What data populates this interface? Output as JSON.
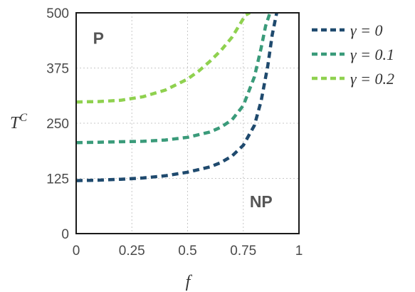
{
  "chart_data": {
    "type": "line",
    "xlabel": "f",
    "ylabel": "T",
    "ylabel_superscript": "C",
    "xlim": [
      0,
      1
    ],
    "ylim": [
      0,
      500
    ],
    "xticks": [
      0,
      0.25,
      0.5,
      0.75,
      1
    ],
    "xtick_labels": [
      "0",
      "0.25",
      "0.5",
      "0.75",
      "1"
    ],
    "yticks": [
      0,
      125,
      250,
      375,
      500
    ],
    "ytick_labels": [
      "0",
      "125",
      "250",
      "375",
      "500"
    ],
    "grid": true,
    "legend_position": "outside-right-top",
    "annotations": [
      {
        "text": "P",
        "x": 0.1,
        "y": 430
      },
      {
        "text": "NP",
        "x": 0.83,
        "y": 60
      }
    ],
    "series": [
      {
        "name": "γ = 0",
        "color": "#1f4a6e",
        "x": [
          0,
          0.1,
          0.2,
          0.3,
          0.4,
          0.5,
          0.6,
          0.65,
          0.7,
          0.75,
          0.8,
          0.83,
          0.86,
          0.88,
          0.9
        ],
        "y": [
          120,
          121,
          123,
          126,
          131,
          139,
          151,
          161,
          176,
          200,
          245,
          300,
          380,
          450,
          500
        ]
      },
      {
        "name": "γ = 0.1",
        "color": "#3a9b7a",
        "x": [
          0,
          0.1,
          0.2,
          0.3,
          0.4,
          0.5,
          0.6,
          0.65,
          0.7,
          0.75,
          0.8,
          0.83,
          0.85,
          0.87
        ],
        "y": [
          206,
          207,
          208,
          209,
          212,
          218,
          230,
          241,
          258,
          290,
          355,
          420,
          470,
          500
        ]
      },
      {
        "name": "γ = 0.2",
        "color": "#8fd14f",
        "x": [
          0,
          0.1,
          0.2,
          0.3,
          0.4,
          0.5,
          0.55,
          0.6,
          0.65,
          0.7,
          0.73,
          0.76,
          0.78
        ],
        "y": [
          298,
          299,
          302,
          310,
          325,
          350,
          368,
          390,
          415,
          445,
          470,
          495,
          500
        ]
      }
    ]
  }
}
